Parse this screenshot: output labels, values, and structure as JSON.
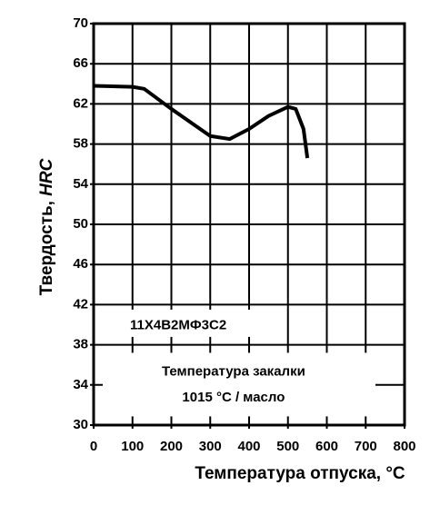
{
  "chart_data": {
    "type": "line",
    "y_label": "Твердость,",
    "y_label_unit": "HRC",
    "x_label": "Температура отпуска, °C",
    "annotations": [
      "11Х4В2МФ3С2",
      "Температура закалки",
      "1015 °C / масло"
    ],
    "x": [
      0,
      100,
      130,
      200,
      300,
      350,
      400,
      450,
      500,
      520,
      540,
      550
    ],
    "series": [
      {
        "color": "#000000",
        "values": [
          63.8,
          63.7,
          63.5,
          61.5,
          58.8,
          58.5,
          59.5,
          60.8,
          61.7,
          61.5,
          59.5,
          56.6
        ]
      }
    ],
    "xlim": [
      0,
      800
    ],
    "xticks": [
      0,
      100,
      200,
      300,
      400,
      500,
      600,
      700,
      800
    ],
    "ylim": [
      30,
      70
    ],
    "yticks": [
      30,
      34,
      38,
      42,
      46,
      50,
      54,
      58,
      62,
      66,
      70
    ],
    "grid": true
  }
}
